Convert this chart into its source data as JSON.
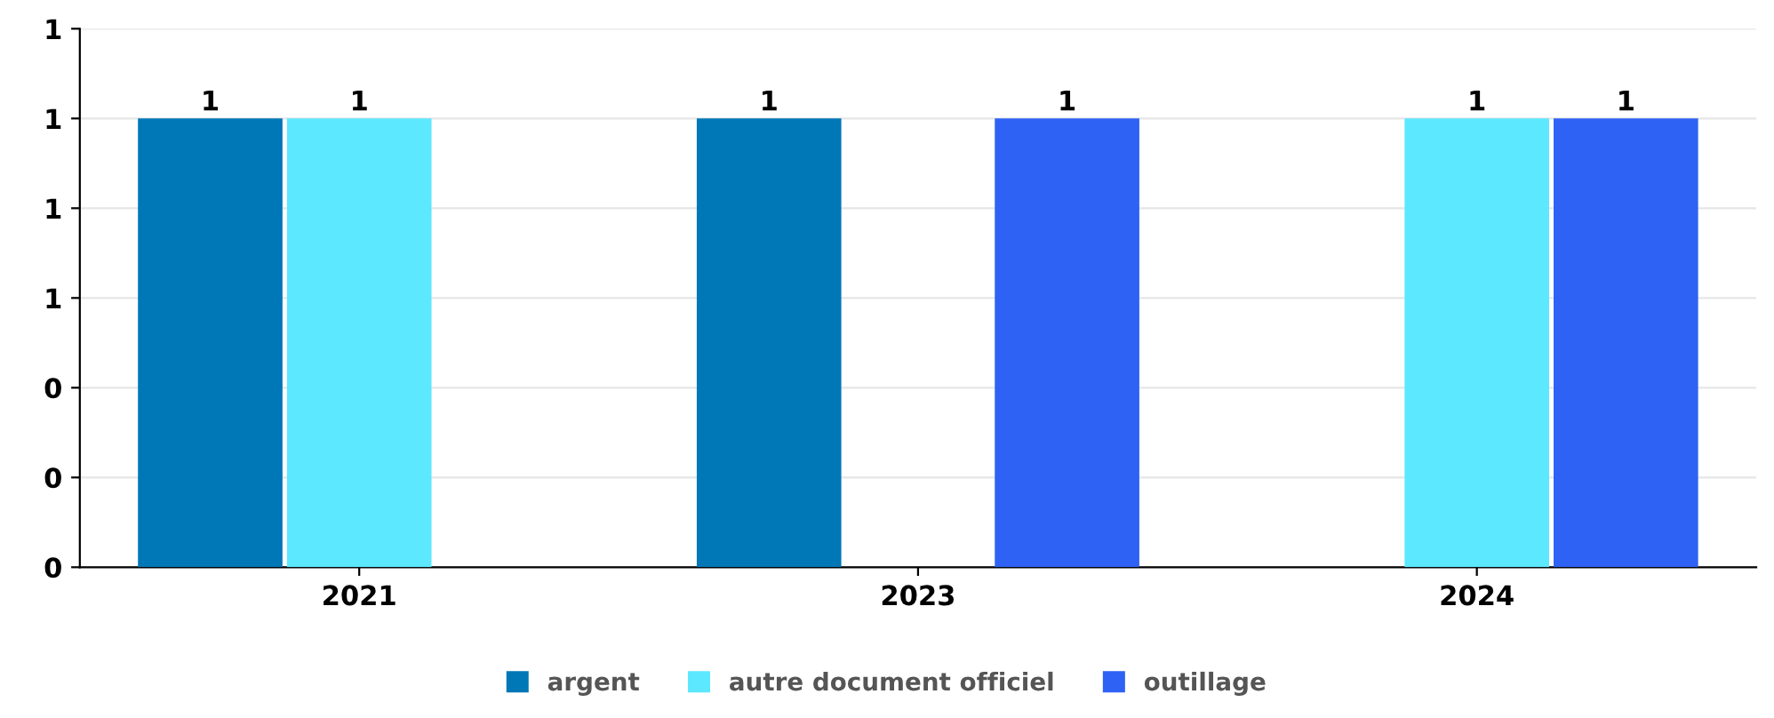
{
  "chart_data": {
    "type": "bar",
    "categories": [
      "2021",
      "2023",
      "2024"
    ],
    "series": [
      {
        "name": "argent",
        "color": "#0077b6",
        "values": [
          1,
          1,
          null
        ]
      },
      {
        "name": "autre document officiel",
        "color": "#5ce8ff",
        "values": [
          1,
          null,
          1
        ]
      },
      {
        "name": "outillage",
        "color": "#2e62f5",
        "values": [
          null,
          1,
          1
        ]
      }
    ],
    "ylim": [
      0,
      1.2
    ],
    "yticks": [
      {
        "value": 0,
        "label": "0"
      },
      {
        "value": 0.2,
        "label": "0"
      },
      {
        "value": 0.4,
        "label": "0"
      },
      {
        "value": 0.6,
        "label": "1"
      },
      {
        "value": 0.8,
        "label": "1"
      },
      {
        "value": 1.0,
        "label": "1"
      },
      {
        "value": 1.2,
        "label": "1"
      }
    ],
    "grid": "y",
    "legend": "bottom",
    "data_labels": true
  }
}
